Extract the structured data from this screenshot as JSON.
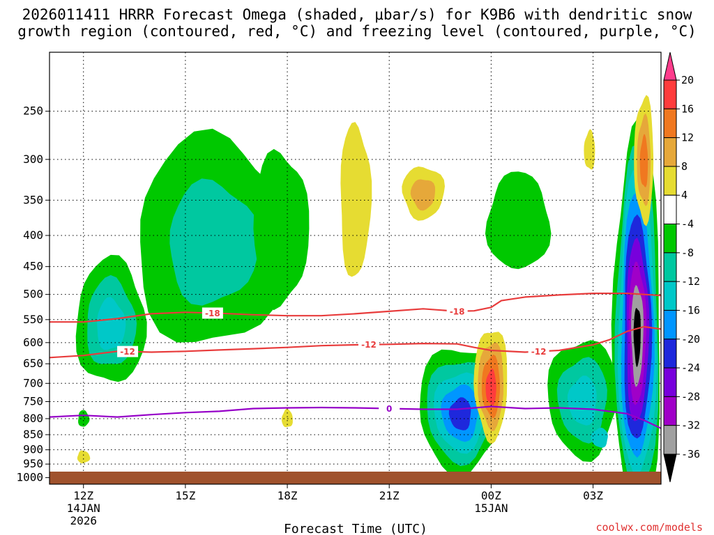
{
  "chart_data": {
    "type": "heatmap",
    "title_line1": "2026011411 HRRR Forecast Omega (shaded, μbar/s) for K9B6 with dendritic snow",
    "title_line2": "growth region (contoured, red, °C) and freezing level (contoured, purple, °C)",
    "xlabel": "Forecast Time (UTC)",
    "credit": "coolwx.com/models",
    "x_ticks": [
      {
        "hour": 0,
        "label": "12Z",
        "sub1": "14JAN",
        "sub2": "2026"
      },
      {
        "hour": 3,
        "label": "15Z",
        "sub1": "",
        "sub2": ""
      },
      {
        "hour": 6,
        "label": "18Z",
        "sub1": "",
        "sub2": ""
      },
      {
        "hour": 9,
        "label": "21Z",
        "sub1": "",
        "sub2": ""
      },
      {
        "hour": 12,
        "label": "00Z",
        "sub1": "15JAN",
        "sub2": ""
      },
      {
        "hour": 15,
        "label": "03Z",
        "sub1": "",
        "sub2": ""
      }
    ],
    "xlim_hours": [
      -1,
      17
    ],
    "y_levels_hPa": [
      "250",
      "300",
      "350",
      "400",
      "450",
      "500",
      "550",
      "600",
      "650",
      "700",
      "750",
      "800",
      "850",
      "900",
      "950",
      "1000"
    ],
    "colorbar": {
      "labels": [
        "20",
        "16",
        "12",
        "8",
        "4",
        "-4",
        "-8",
        "-12",
        "-16",
        "-20",
        "-24",
        "-28",
        "-32",
        "-36"
      ],
      "bins": [
        {
          "low": 20,
          "high": 99,
          "color": "#ff3c8c"
        },
        {
          "low": 16,
          "high": 20,
          "color": "#ff3c3c"
        },
        {
          "low": 12,
          "high": 16,
          "color": "#f07820"
        },
        {
          "low": 8,
          "high": 12,
          "color": "#e6a83a"
        },
        {
          "low": 4,
          "high": 8,
          "color": "#e6dc32"
        },
        {
          "low": -4,
          "high": 4,
          "color": "#ffffff"
        },
        {
          "low": -8,
          "high": -4,
          "color": "#00c800"
        },
        {
          "low": -12,
          "high": -8,
          "color": "#00c8a0"
        },
        {
          "low": -16,
          "high": -12,
          "color": "#00c8c8"
        },
        {
          "low": -20,
          "high": -16,
          "color": "#0096ff"
        },
        {
          "low": -24,
          "high": -20,
          "color": "#1e28dc"
        },
        {
          "low": -28,
          "high": -24,
          "color": "#7800dc"
        },
        {
          "low": -32,
          "high": -28,
          "color": "#a000c8"
        },
        {
          "low": -36,
          "high": -32,
          "color": "#a0a0a0"
        },
        {
          "low": -99,
          "high": -36,
          "color": "#000000"
        }
      ]
    },
    "omega_features": [
      {
        "name": "ascent-core-1",
        "t": 0.8,
        "p": 555,
        "values": [
          -6,
          -10,
          -14
        ]
      },
      {
        "name": "ascent-core-2",
        "t": 3.8,
        "p": 410,
        "values": [
          -6,
          -10
        ]
      },
      {
        "name": "ascent-core-3",
        "t": 5.8,
        "p": 390,
        "values": [
          -6
        ]
      },
      {
        "name": "ascent-core-4",
        "t": 11.1,
        "p": 770,
        "values": [
          -6,
          -10,
          -14,
          -18,
          -22
        ]
      },
      {
        "name": "ascent-core-5",
        "t": 14.7,
        "p": 740,
        "values": [
          -6,
          -10,
          -14
        ]
      },
      {
        "name": "ascent-core-6",
        "t": 15.2,
        "p": 860,
        "values": [
          -16
        ]
      },
      {
        "name": "ascent-core-7",
        "t": 16.3,
        "p": 560,
        "values": [
          -6,
          -10,
          -14,
          -18,
          -22,
          -26,
          -30,
          -34,
          -40
        ]
      },
      {
        "name": "ascent-core-8",
        "t": 12.8,
        "p": 380,
        "values": [
          -6
        ]
      },
      {
        "name": "ascent-core-9",
        "t": 0.0,
        "p": 800,
        "values": [
          -6
        ]
      },
      {
        "name": "subsidence-1",
        "t": 8.0,
        "p": 350,
        "values": [
          6
        ]
      },
      {
        "name": "subsidence-2",
        "t": 10.0,
        "p": 340,
        "values": [
          6,
          10
        ]
      },
      {
        "name": "subsidence-3",
        "t": 12.0,
        "p": 700,
        "values": [
          6,
          10,
          14,
          18
        ]
      },
      {
        "name": "subsidence-4",
        "t": 16.5,
        "p": 300,
        "values": [
          6,
          10,
          14
        ]
      },
      {
        "name": "subsidence-5",
        "t": 14.9,
        "p": 290,
        "values": [
          6
        ]
      },
      {
        "name": "subsidence-6",
        "t": 6.0,
        "p": 800,
        "values": [
          6
        ]
      },
      {
        "name": "subsidence-7",
        "t": 0.0,
        "p": 925,
        "values": [
          6
        ]
      }
    ],
    "isotherms": [
      {
        "value": -18,
        "label": "-18",
        "color": "#e83c3c",
        "points": [
          [
            -1,
            555
          ],
          [
            0,
            555
          ],
          [
            1,
            548
          ],
          [
            2,
            538
          ],
          [
            3,
            535
          ],
          [
            4,
            537
          ],
          [
            5,
            540
          ],
          [
            6,
            542
          ],
          [
            7,
            542
          ],
          [
            8,
            538
          ],
          [
            9,
            533
          ],
          [
            10,
            528
          ],
          [
            11,
            533
          ],
          [
            11.5,
            532
          ],
          [
            12,
            525
          ],
          [
            12.3,
            512
          ],
          [
            13,
            505
          ],
          [
            14,
            501
          ],
          [
            15,
            498
          ],
          [
            16,
            498
          ],
          [
            17,
            502
          ]
        ],
        "label_hours": [
          3.8,
          11.0
        ]
      },
      {
        "value": -12,
        "label": "-12",
        "color": "#e83c3c",
        "points": [
          [
            -1,
            635
          ],
          [
            0,
            630
          ],
          [
            1,
            620
          ],
          [
            2,
            622
          ],
          [
            3,
            620
          ],
          [
            4,
            617
          ],
          [
            5,
            614
          ],
          [
            6,
            611
          ],
          [
            7,
            607
          ],
          [
            8,
            605
          ],
          [
            9,
            604
          ],
          [
            10,
            602
          ],
          [
            11,
            603
          ],
          [
            11.5,
            611
          ],
          [
            12,
            618
          ],
          [
            13,
            622
          ],
          [
            14,
            618
          ],
          [
            15,
            605
          ],
          [
            15.5,
            593
          ],
          [
            16,
            575
          ],
          [
            16.5,
            565
          ],
          [
            17,
            570
          ]
        ],
        "label_hours": [
          1.3,
          8.4,
          13.4
        ]
      },
      {
        "value": 0,
        "label": "0",
        "color": "#9600c8",
        "points": [
          [
            -1,
            795
          ],
          [
            0,
            790
          ],
          [
            1,
            795
          ],
          [
            2,
            788
          ],
          [
            3,
            782
          ],
          [
            4,
            778
          ],
          [
            5,
            770
          ],
          [
            6,
            768
          ],
          [
            7,
            767
          ],
          [
            8,
            768
          ],
          [
            9,
            770
          ],
          [
            10,
            772
          ],
          [
            11,
            772
          ],
          [
            12,
            764
          ],
          [
            13,
            770
          ],
          [
            14,
            768
          ],
          [
            15,
            772
          ],
          [
            16,
            785
          ],
          [
            16.5,
            805
          ],
          [
            17,
            830
          ]
        ],
        "label_hours": [
          9.0
        ]
      }
    ]
  }
}
